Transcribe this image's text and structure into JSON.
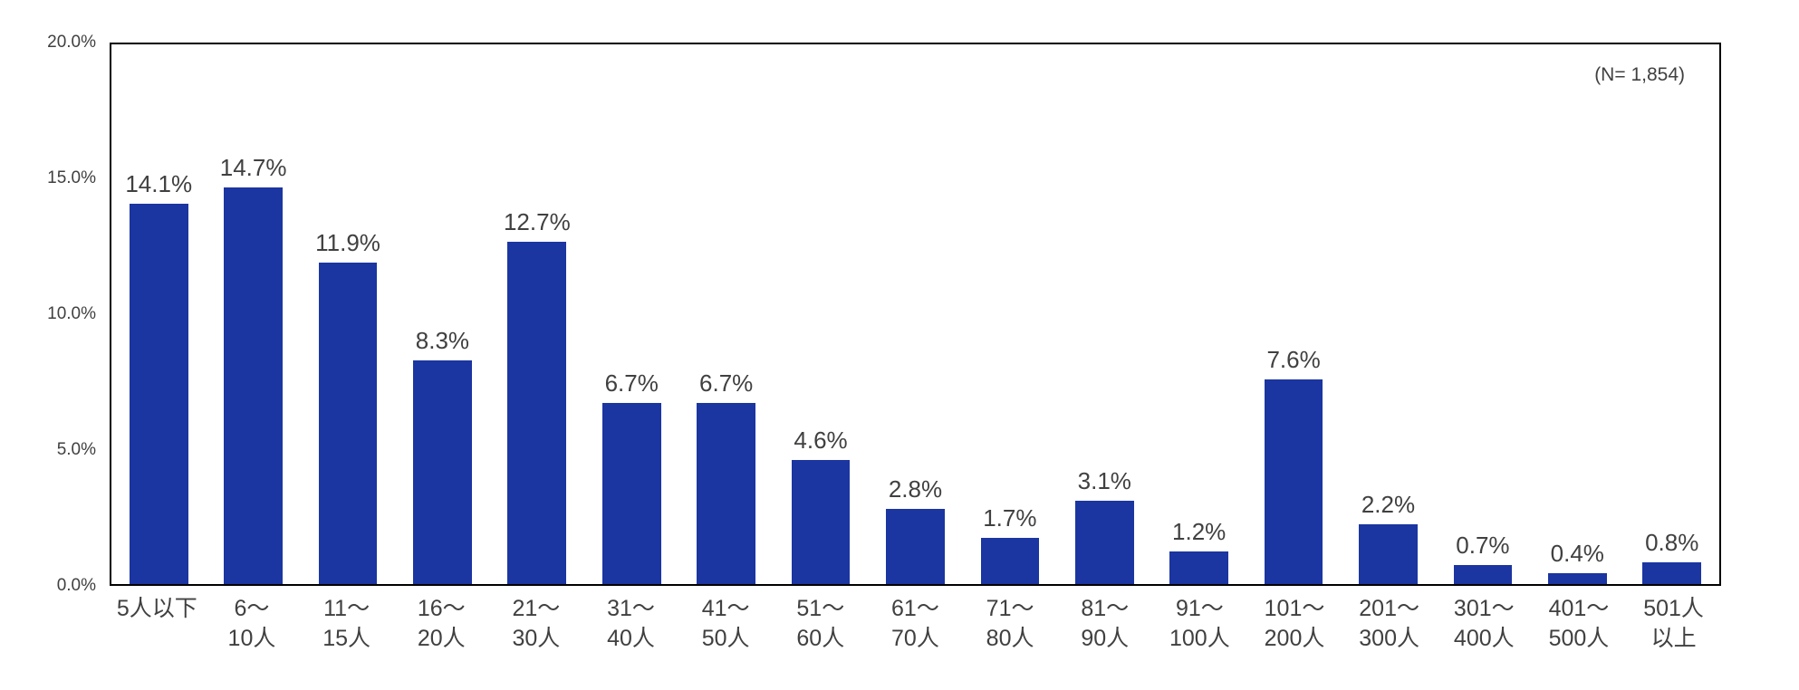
{
  "chart_data": {
    "type": "bar",
    "title": "",
    "xlabel": "",
    "ylabel": "",
    "annotation": "(N= 1,854)",
    "categories": [
      "5人以下",
      "6～\n10人",
      "11～\n15人",
      "16～\n20人",
      "21～\n30人",
      "31～\n40人",
      "41～\n50人",
      "51～\n60人",
      "61～\n70人",
      "71～\n80人",
      "81～\n90人",
      "91～\n100人",
      "101～\n200人",
      "201～\n300人",
      "301～\n400人",
      "401～\n500人",
      "501人\n以上"
    ],
    "values": [
      14.1,
      14.7,
      11.9,
      8.3,
      12.7,
      6.7,
      6.7,
      4.6,
      2.8,
      1.7,
      3.1,
      1.2,
      7.6,
      2.2,
      0.7,
      0.4,
      0.8
    ],
    "value_labels": [
      "14.1%",
      "14.7%",
      "11.9%",
      "8.3%",
      "12.7%",
      "6.7%",
      "6.7%",
      "4.6%",
      "2.8%",
      "1.7%",
      "3.1%",
      "1.2%",
      "7.6%",
      "2.2%",
      "0.7%",
      "0.4%",
      "0.8%"
    ],
    "y_ticks": [
      "20.0%",
      "15.0%",
      "10.0%",
      "5.0%",
      "0.0%"
    ],
    "ylim": [
      0,
      20
    ],
    "grid": "off",
    "legend": "none",
    "bar_color": "#1B35A1",
    "text_color": "#404040",
    "border_color": "#000000"
  }
}
